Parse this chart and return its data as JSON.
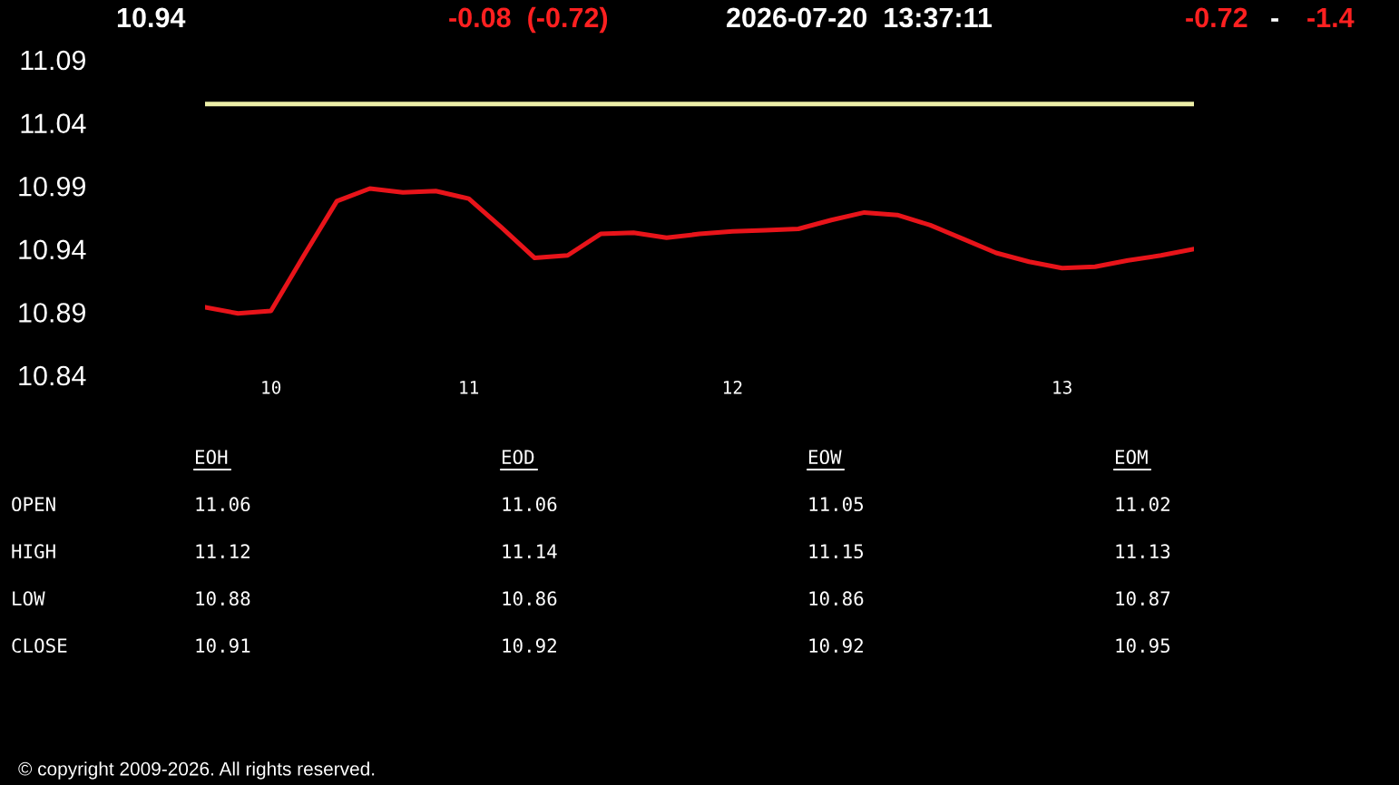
{
  "chart_data": [
    {
      "type": "line",
      "categories": [
        null,
        null,
        "10",
        null,
        null,
        null,
        null,
        null,
        "11",
        null,
        null,
        null,
        null,
        null,
        null,
        null,
        "12",
        null,
        null,
        null,
        null,
        null,
        null,
        null,
        null,
        null,
        "13",
        null,
        null,
        null,
        null
      ],
      "series": [
        {
          "color": "#eef0a8",
          "values": [
            11.055,
            11.055,
            11.055,
            11.055,
            11.055,
            11.055,
            11.055,
            11.055,
            11.055,
            11.055,
            11.055,
            11.055,
            11.055,
            11.055,
            11.055,
            11.055,
            11.055,
            11.055,
            11.055,
            11.055,
            11.055,
            11.055,
            11.055,
            11.055,
            11.055,
            11.055,
            11.055,
            11.055,
            11.055,
            11.055,
            11.055
          ]
        },
        {
          "color": "#e8141a",
          "values": [
            10.894,
            10.889,
            10.891,
            10.935,
            10.978,
            10.988,
            10.985,
            10.986,
            10.98,
            10.957,
            10.933,
            10.935,
            10.952,
            10.953,
            10.949,
            10.952,
            10.954,
            10.955,
            10.956,
            10.963,
            10.969,
            10.967,
            10.959,
            10.948,
            10.937,
            10.93,
            10.925,
            10.926,
            10.931,
            10.935,
            10.94
          ]
        }
      ],
      "ylim": [
        10.84,
        11.09
      ],
      "yticks": [
        10.84,
        10.89,
        10.94,
        10.99,
        11.04,
        11.09
      ],
      "grid": false,
      "annotations": [
        "10.94",
        "-0.08  (-0.72)",
        "2026-07-20  13:37:11",
        "-0.72",
        "-",
        "-1.4",
        "© copyright 2009-2026. All rights reserved."
      ]
    },
    {
      "type": "other",
      "categories": [
        "EOH",
        "EOD",
        "EOW",
        "EOM"
      ],
      "y_categories": [
        "OPEN",
        "HIGH",
        "LOW",
        "CLOSE"
      ],
      "cells": [
        [
          "11.06",
          "11.06",
          "11.05",
          "11.02"
        ],
        [
          "11.12",
          "11.14",
          "11.15",
          "11.13"
        ],
        [
          "10.88",
          "10.86",
          "10.86",
          "10.87"
        ],
        [
          "10.91",
          "10.92",
          "10.92",
          "10.95"
        ]
      ]
    }
  ]
}
